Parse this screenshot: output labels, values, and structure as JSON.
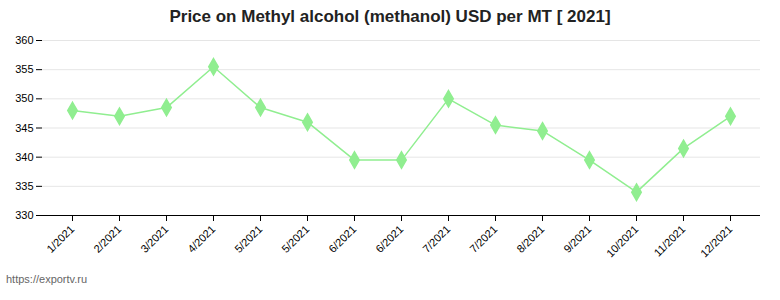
{
  "chart_data": {
    "type": "line",
    "title": "Price on Methyl alcohol (methanol) USD per MT [ 2021]",
    "categories": [
      "1/2021",
      "2/2021",
      "3/2021",
      "4/2021",
      "5/2021",
      "5/2021",
      "6/2021",
      "6/2021",
      "7/2021",
      "7/2021",
      "8/2021",
      "9/2021",
      "10/2021",
      "11/2021",
      "12/2021"
    ],
    "values": [
      348,
      347,
      348.5,
      355.5,
      348.5,
      346,
      339.5,
      339.5,
      350,
      345.5,
      344.5,
      339.5,
      334,
      341.5,
      347
    ],
    "color": "#90EE90",
    "marker": "diamond",
    "ylim": [
      330,
      360
    ],
    "yticks": [
      330,
      335,
      340,
      345,
      350,
      355,
      360
    ],
    "grid": true,
    "annotation": "https://exportv.ru"
  }
}
